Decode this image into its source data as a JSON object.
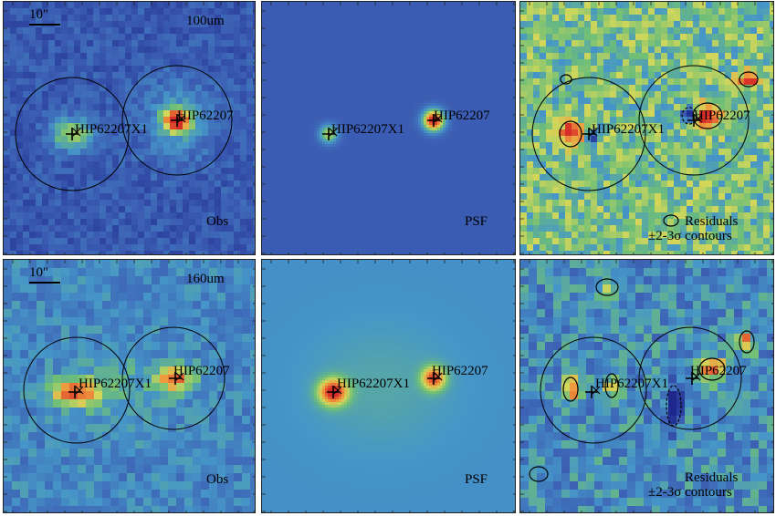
{
  "rows": [
    {
      "band": "100um",
      "scale_label": "10\"",
      "panels": [
        {
          "name": "obs",
          "label": "Obs"
        },
        {
          "name": "psf",
          "label": "PSF"
        },
        {
          "name": "residuals",
          "label_line1": "Residuals",
          "label_line2": "±2-3σ contours"
        }
      ],
      "sources": [
        "HIP62207X1",
        "HIP62207"
      ]
    },
    {
      "band": "160um",
      "scale_label": "10\"",
      "panels": [
        {
          "name": "obs",
          "label": "Obs"
        },
        {
          "name": "psf",
          "label": "PSF"
        },
        {
          "name": "residuals",
          "label_line1": "Residuals",
          "label_line2": "±2-3σ contours"
        }
      ],
      "sources": [
        "HIP62207X1",
        "HIP62207"
      ]
    }
  ],
  "colors": {
    "background_blue": "#3d62b0",
    "psf_background_100": "#3c5fb3",
    "psf_background_160": "#4f8fc8",
    "peak_red": "#d73a2a",
    "peak_orange": "#f0a040",
    "mid_green": "#7ec06a",
    "mid_yellow": "#d8d860",
    "contour": "#000000"
  }
}
